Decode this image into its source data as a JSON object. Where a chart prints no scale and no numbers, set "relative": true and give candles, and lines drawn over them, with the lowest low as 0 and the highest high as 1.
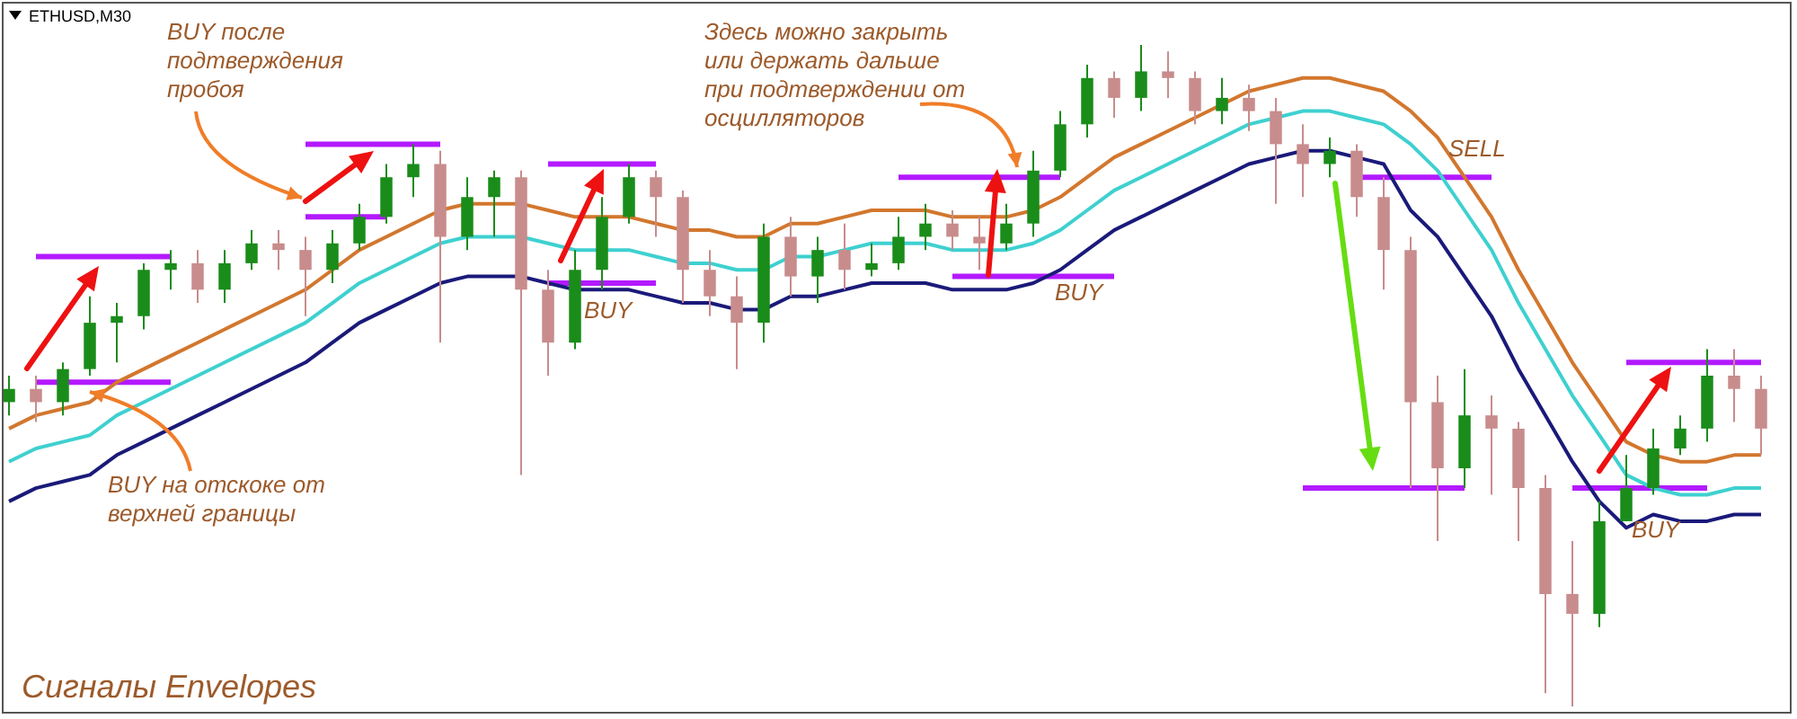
{
  "chart_data": {
    "type": "candlestick",
    "title": "ETHUSD,M30",
    "subtitle": "Сигналы Envelopes",
    "relative": true,
    "annotations": [
      "BUY после подтверждения пробоя",
      "BUY на отскоке от верхней границы",
      "BUY",
      "Здесь можно закрыть или держать дальше при подтверждении от осцилляторов",
      "BUY",
      "SELL",
      "BUY"
    ],
    "categories": [
      null,
      null,
      null,
      null,
      null,
      null,
      null,
      null,
      null,
      null,
      null,
      null,
      null,
      null,
      null,
      null,
      null,
      null,
      null,
      null,
      null,
      null,
      null,
      null,
      null,
      null,
      null,
      null,
      null,
      null,
      null,
      null,
      null,
      null,
      null,
      null,
      null,
      null,
      null,
      null,
      null,
      null,
      null,
      null,
      null,
      null,
      null,
      null,
      null,
      null,
      null,
      null,
      null,
      null,
      null,
      null,
      null,
      null,
      null,
      null,
      null,
      null,
      null,
      null,
      null,
      null
    ],
    "ohlc": [
      [
        0.46,
        0.5,
        0.44,
        0.48
      ],
      [
        0.48,
        0.5,
        0.43,
        0.46
      ],
      [
        0.46,
        0.52,
        0.44,
        0.51
      ],
      [
        0.51,
        0.62,
        0.5,
        0.58
      ],
      [
        0.58,
        0.61,
        0.52,
        0.59
      ],
      [
        0.59,
        0.67,
        0.57,
        0.66
      ],
      [
        0.66,
        0.69,
        0.63,
        0.67
      ],
      [
        0.67,
        0.69,
        0.61,
        0.63
      ],
      [
        0.63,
        0.69,
        0.61,
        0.67
      ],
      [
        0.67,
        0.72,
        0.66,
        0.7
      ],
      [
        0.7,
        0.72,
        0.66,
        0.69
      ],
      [
        0.69,
        0.71,
        0.59,
        0.66
      ],
      [
        0.66,
        0.72,
        0.64,
        0.7
      ],
      [
        0.7,
        0.76,
        0.69,
        0.74
      ],
      [
        0.74,
        0.82,
        0.73,
        0.8
      ],
      [
        0.8,
        0.85,
        0.77,
        0.82
      ],
      [
        0.82,
        0.84,
        0.55,
        0.71
      ],
      [
        0.71,
        0.8,
        0.69,
        0.77
      ],
      [
        0.77,
        0.81,
        0.71,
        0.8
      ],
      [
        0.8,
        0.81,
        0.35,
        0.63
      ],
      [
        0.63,
        0.66,
        0.5,
        0.55
      ],
      [
        0.55,
        0.69,
        0.54,
        0.66
      ],
      [
        0.66,
        0.77,
        0.63,
        0.74
      ],
      [
        0.74,
        0.82,
        0.73,
        0.8
      ],
      [
        0.8,
        0.81,
        0.71,
        0.77
      ],
      [
        0.77,
        0.78,
        0.61,
        0.66
      ],
      [
        0.66,
        0.69,
        0.59,
        0.62
      ],
      [
        0.62,
        0.65,
        0.51,
        0.58
      ],
      [
        0.58,
        0.73,
        0.55,
        0.71
      ],
      [
        0.71,
        0.74,
        0.62,
        0.65
      ],
      [
        0.65,
        0.71,
        0.61,
        0.69
      ],
      [
        0.69,
        0.73,
        0.63,
        0.66
      ],
      [
        0.66,
        0.7,
        0.65,
        0.67
      ],
      [
        0.67,
        0.74,
        0.66,
        0.71
      ],
      [
        0.71,
        0.76,
        0.69,
        0.73
      ],
      [
        0.73,
        0.75,
        0.69,
        0.71
      ],
      [
        0.71,
        0.74,
        0.66,
        0.7
      ],
      [
        0.7,
        0.76,
        0.69,
        0.73
      ],
      [
        0.73,
        0.84,
        0.71,
        0.81
      ],
      [
        0.81,
        0.9,
        0.8,
        0.88
      ],
      [
        0.88,
        0.97,
        0.86,
        0.95
      ],
      [
        0.95,
        0.96,
        0.89,
        0.92
      ],
      [
        0.92,
        1.0,
        0.9,
        0.96
      ],
      [
        0.96,
        0.99,
        0.92,
        0.95
      ],
      [
        0.95,
        0.96,
        0.88,
        0.9
      ],
      [
        0.9,
        0.95,
        0.88,
        0.92
      ],
      [
        0.92,
        0.94,
        0.87,
        0.9
      ],
      [
        0.9,
        0.92,
        0.76,
        0.85
      ],
      [
        0.85,
        0.88,
        0.77,
        0.82
      ],
      [
        0.82,
        0.86,
        0.8,
        0.84
      ],
      [
        0.84,
        0.85,
        0.74,
        0.77
      ],
      [
        0.77,
        0.8,
        0.63,
        0.69
      ],
      [
        0.69,
        0.71,
        0.33,
        0.46
      ],
      [
        0.46,
        0.5,
        0.25,
        0.36
      ],
      [
        0.36,
        0.51,
        0.33,
        0.44
      ],
      [
        0.44,
        0.47,
        0.32,
        0.42
      ],
      [
        0.42,
        0.43,
        0.25,
        0.33
      ],
      [
        0.33,
        0.35,
        0.02,
        0.17
      ],
      [
        0.17,
        0.25,
        0,
        0.14
      ],
      [
        0.14,
        0.31,
        0.12,
        0.28
      ],
      [
        0.28,
        0.38,
        0.28,
        0.33
      ],
      [
        0.33,
        0.42,
        0.32,
        0.39
      ],
      [
        0.39,
        0.44,
        0.38,
        0.42
      ],
      [
        0.42,
        0.54,
        0.4,
        0.5
      ],
      [
        0.5,
        0.54,
        0.43,
        0.48
      ],
      [
        0.48,
        0.5,
        0.38,
        0.42
      ]
    ],
    "series": [
      {
        "type": "line",
        "color": "#d2772e",
        "values": [
          0.42,
          0.44,
          0.45,
          0.46,
          0.49,
          0.51,
          0.53,
          0.55,
          0.57,
          0.59,
          0.61,
          0.63,
          0.66,
          0.69,
          0.71,
          0.73,
          0.75,
          0.76,
          0.76,
          0.76,
          0.75,
          0.74,
          0.74,
          0.74,
          0.73,
          0.72,
          0.72,
          0.71,
          0.71,
          0.73,
          0.73,
          0.74,
          0.75,
          0.75,
          0.75,
          0.74,
          0.74,
          0.74,
          0.75,
          0.77,
          0.8,
          0.83,
          0.85,
          0.87,
          0.89,
          0.91,
          0.93,
          0.94,
          0.95,
          0.95,
          0.94,
          0.93,
          0.9,
          0.86,
          0.8,
          0.74,
          0.66,
          0.59,
          0.52,
          0.46,
          0.4,
          0.38,
          0.37,
          0.37,
          0.38,
          0.38
        ]
      },
      {
        "type": "line",
        "color": "#3fd0d0",
        "values": [
          0.37,
          0.39,
          0.4,
          0.41,
          0.44,
          0.46,
          0.48,
          0.5,
          0.52,
          0.54,
          0.56,
          0.58,
          0.61,
          0.64,
          0.66,
          0.68,
          0.7,
          0.71,
          0.71,
          0.71,
          0.7,
          0.69,
          0.69,
          0.69,
          0.68,
          0.67,
          0.67,
          0.66,
          0.66,
          0.68,
          0.68,
          0.69,
          0.7,
          0.7,
          0.7,
          0.69,
          0.69,
          0.69,
          0.7,
          0.72,
          0.75,
          0.78,
          0.8,
          0.82,
          0.84,
          0.86,
          0.88,
          0.89,
          0.9,
          0.9,
          0.89,
          0.88,
          0.85,
          0.81,
          0.75,
          0.69,
          0.61,
          0.54,
          0.47,
          0.41,
          0.35,
          0.33,
          0.32,
          0.32,
          0.33,
          0.33
        ]
      },
      {
        "type": "line",
        "color": "#1a1a7a",
        "values": [
          0.31,
          0.33,
          0.34,
          0.35,
          0.38,
          0.4,
          0.42,
          0.44,
          0.46,
          0.48,
          0.5,
          0.52,
          0.55,
          0.58,
          0.6,
          0.62,
          0.64,
          0.65,
          0.65,
          0.65,
          0.64,
          0.63,
          0.63,
          0.63,
          0.62,
          0.61,
          0.61,
          0.6,
          0.6,
          0.62,
          0.62,
          0.63,
          0.64,
          0.64,
          0.64,
          0.63,
          0.63,
          0.63,
          0.64,
          0.66,
          0.69,
          0.72,
          0.74,
          0.76,
          0.78,
          0.8,
          0.82,
          0.83,
          0.84,
          0.84,
          0.83,
          0.82,
          0.75,
          0.71,
          0.65,
          0.59,
          0.51,
          0.44,
          0.37,
          0.31,
          0.27,
          0.29,
          0.28,
          0.28,
          0.29,
          0.29
        ]
      },
      {
        "type": "line",
        "color": "#b31aff",
        "values": [
          null,
          0.68,
          0.68,
          0.68,
          0.68,
          0.68,
          0.68,
          null,
          null,
          null,
          null,
          null,
          null,
          null,
          null,
          null,
          null,
          null,
          null,
          null,
          null,
          null,
          null,
          null,
          null,
          null,
          null,
          null,
          null,
          null,
          null,
          null,
          null,
          null,
          null,
          null,
          null,
          null,
          null,
          null,
          null,
          null,
          null,
          null,
          null,
          null,
          null,
          null,
          null,
          null,
          null,
          null,
          null,
          null,
          null,
          null,
          null,
          null,
          null,
          null,
          null,
          null,
          null,
          null,
          null,
          null
        ]
      },
      {
        "type": "line",
        "color": "#b31aff",
        "values": [
          null,
          0.49,
          0.49,
          0.49,
          0.49,
          0.49,
          0.49,
          null,
          null,
          null,
          null,
          null,
          null,
          null,
          null,
          null,
          null,
          null,
          null,
          null,
          null,
          null,
          null,
          null,
          null,
          null,
          null,
          null,
          null,
          null,
          null,
          null,
          null,
          null,
          null,
          null,
          null,
          null,
          null,
          null,
          null,
          null,
          null,
          null,
          null,
          null,
          null,
          null,
          null,
          null,
          null,
          null,
          null,
          null,
          null,
          null,
          null,
          null,
          null,
          null,
          null,
          null,
          null,
          null,
          null,
          null
        ]
      },
      {
        "type": "line",
        "color": "#b31aff",
        "values": [
          null,
          null,
          null,
          null,
          null,
          null,
          null,
          null,
          null,
          null,
          null,
          0.74,
          0.74,
          0.74,
          0.74,
          null,
          null,
          null,
          null,
          null,
          null,
          null,
          null,
          null,
          null,
          null,
          null,
          null,
          null,
          null,
          null,
          null,
          null,
          null,
          null,
          null,
          null,
          null,
          null,
          null,
          null,
          null,
          null,
          null,
          null,
          null,
          null,
          null,
          null,
          null,
          null,
          null,
          null,
          null,
          null,
          null,
          null,
          null,
          null,
          null,
          null,
          null,
          null,
          null,
          null,
          null
        ]
      },
      {
        "type": "line",
        "color": "#b31aff",
        "values": [
          null,
          null,
          null,
          null,
          null,
          null,
          null,
          null,
          null,
          null,
          null,
          0.85,
          0.85,
          0.85,
          0.85,
          0.85,
          0.85,
          null,
          null,
          null,
          null,
          null,
          null,
          null,
          null,
          null,
          null,
          null,
          null,
          null,
          null,
          null,
          null,
          null,
          null,
          null,
          null,
          null,
          null,
          null,
          null,
          null,
          null,
          null,
          null,
          null,
          null,
          null,
          null,
          null,
          null,
          null,
          null,
          null,
          null,
          null,
          null,
          null,
          null,
          null,
          null,
          null,
          null,
          null,
          null,
          null
        ]
      },
      {
        "type": "line",
        "color": "#b31aff",
        "values": [
          null,
          null,
          null,
          null,
          null,
          null,
          null,
          null,
          null,
          null,
          null,
          null,
          null,
          null,
          null,
          null,
          null,
          null,
          null,
          null,
          0.82,
          0.82,
          0.82,
          0.82,
          0.82,
          null,
          null,
          null,
          null,
          null,
          null,
          null,
          null,
          null,
          null,
          null,
          null,
          null,
          null,
          null,
          null,
          null,
          null,
          null,
          null,
          null,
          null,
          null,
          null,
          null,
          null,
          null,
          null,
          null,
          null,
          null,
          null,
          null,
          null,
          null,
          null,
          null,
          null,
          null,
          null,
          null
        ]
      },
      {
        "type": "line",
        "color": "#b31aff",
        "values": [
          null,
          null,
          null,
          null,
          null,
          null,
          null,
          null,
          null,
          null,
          null,
          null,
          null,
          null,
          null,
          null,
          null,
          null,
          null,
          null,
          0.64,
          0.64,
          0.64,
          0.64,
          0.64,
          null,
          null,
          null,
          null,
          null,
          null,
          null,
          null,
          null,
          null,
          null,
          null,
          null,
          null,
          null,
          null,
          null,
          null,
          null,
          null,
          null,
          null,
          null,
          null,
          null,
          null,
          null,
          null,
          null,
          null,
          null,
          null,
          null,
          null,
          null,
          null,
          null,
          null,
          null,
          null,
          null
        ]
      },
      {
        "type": "line",
        "color": "#b31aff",
        "values": [
          null,
          null,
          null,
          null,
          null,
          null,
          null,
          null,
          null,
          null,
          null,
          null,
          null,
          null,
          null,
          null,
          null,
          null,
          null,
          null,
          null,
          null,
          null,
          null,
          null,
          null,
          null,
          null,
          null,
          null,
          null,
          null,
          null,
          0.8,
          0.8,
          0.8,
          0.8,
          0.8,
          0.8,
          0.8,
          null,
          null,
          null,
          null,
          null,
          null,
          null,
          null,
          null,
          null,
          null,
          null,
          null,
          null,
          null,
          null,
          null,
          null,
          null,
          null,
          null,
          null,
          null,
          null,
          null,
          null
        ]
      },
      {
        "type": "line",
        "color": "#b31aff",
        "values": [
          null,
          null,
          null,
          null,
          null,
          null,
          null,
          null,
          null,
          null,
          null,
          null,
          null,
          null,
          null,
          null,
          null,
          null,
          null,
          null,
          null,
          null,
          null,
          null,
          null,
          null,
          null,
          null,
          null,
          null,
          null,
          null,
          null,
          null,
          null,
          0.65,
          0.65,
          0.65,
          0.65,
          0.65,
          0.65,
          0.65,
          null,
          null,
          null,
          null,
          null,
          null,
          null,
          null,
          null,
          null,
          null,
          null,
          null,
          null,
          null,
          null,
          null,
          null,
          null,
          null,
          null,
          null,
          null,
          null
        ]
      },
      {
        "type": "line",
        "color": "#b31aff",
        "values": [
          null,
          null,
          null,
          null,
          null,
          null,
          null,
          null,
          null,
          null,
          null,
          null,
          null,
          null,
          null,
          null,
          null,
          null,
          null,
          null,
          null,
          null,
          null,
          null,
          null,
          null,
          null,
          null,
          null,
          null,
          null,
          null,
          null,
          null,
          null,
          null,
          null,
          null,
          null,
          null,
          null,
          null,
          null,
          null,
          null,
          null,
          null,
          null,
          null,
          null,
          0.8,
          0.8,
          0.8,
          0.8,
          0.8,
          0.8,
          null,
          null,
          null,
          null,
          null,
          null,
          null,
          null,
          null,
          null
        ]
      },
      {
        "type": "line",
        "color": "#b31aff",
        "values": [
          null,
          null,
          null,
          null,
          null,
          null,
          null,
          null,
          null,
          null,
          null,
          null,
          null,
          null,
          null,
          null,
          null,
          null,
          null,
          null,
          null,
          null,
          null,
          null,
          null,
          null,
          null,
          null,
          null,
          null,
          null,
          null,
          null,
          null,
          null,
          null,
          null,
          null,
          null,
          null,
          null,
          null,
          null,
          null,
          null,
          null,
          null,
          null,
          0.33,
          0.33,
          0.33,
          0.33,
          0.33,
          0.33,
          0.33,
          null,
          null,
          null,
          null,
          null,
          null,
          null,
          null,
          null,
          null,
          null
        ]
      },
      {
        "type": "line",
        "color": "#b31aff",
        "values": [
          null,
          null,
          null,
          null,
          null,
          null,
          null,
          null,
          null,
          null,
          null,
          null,
          null,
          null,
          null,
          null,
          null,
          null,
          null,
          null,
          null,
          null,
          null,
          null,
          null,
          null,
          null,
          null,
          null,
          null,
          null,
          null,
          null,
          null,
          null,
          null,
          null,
          null,
          null,
          null,
          null,
          null,
          null,
          null,
          null,
          null,
          null,
          null,
          null,
          null,
          null,
          null,
          null,
          null,
          null,
          null,
          null,
          null,
          0.33,
          0.33,
          0.33,
          0.33,
          0.33,
          0.33,
          null,
          null
        ]
      },
      {
        "type": "line",
        "color": "#b31aff",
        "values": [
          null,
          null,
          null,
          null,
          null,
          null,
          null,
          null,
          null,
          null,
          null,
          null,
          null,
          null,
          null,
          null,
          null,
          null,
          null,
          null,
          null,
          null,
          null,
          null,
          null,
          null,
          null,
          null,
          null,
          null,
          null,
          null,
          null,
          null,
          null,
          null,
          null,
          null,
          null,
          null,
          null,
          null,
          null,
          null,
          null,
          null,
          null,
          null,
          null,
          null,
          null,
          null,
          null,
          null,
          null,
          null,
          null,
          null,
          null,
          null,
          0.52,
          0.52,
          0.52,
          0.52,
          0.52,
          0.52
        ]
      }
    ]
  }
}
